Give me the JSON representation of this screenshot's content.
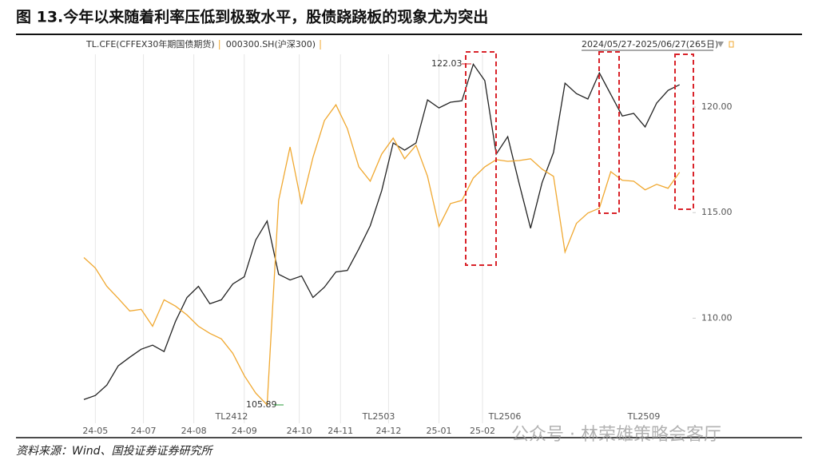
{
  "chart_data": {
    "type": "line",
    "title": "图 13.今年以来随着利率压低到极致水平，股债跷跷板的现象尤为突出",
    "range_label": "2024/05/27-2025/06/27(265日)",
    "source": "资料来源：Wind、国投证券证券研究所",
    "watermark": "公众号 · 林荣雄策略会客厅",
    "contracts": [
      "TL2412",
      "TL2503",
      "TL2506",
      "TL2509"
    ],
    "annotations": [
      "122.03",
      "105.89"
    ],
    "x": [
      0,
      5,
      10,
      15,
      20,
      25,
      30,
      35,
      40,
      45,
      50,
      55,
      60,
      65,
      70,
      75,
      80,
      85,
      90,
      95,
      100,
      105,
      110,
      115,
      120,
      125,
      130,
      135,
      140,
      145,
      150,
      155,
      160,
      165,
      170,
      175,
      180,
      185,
      190,
      195,
      200,
      205,
      210,
      215,
      220,
      225,
      230,
      235,
      240,
      245,
      250,
      255,
      260
    ],
    "xlim": [
      0,
      265
    ],
    "xticks": [
      {
        "value": 5,
        "label": "24-05"
      },
      {
        "value": 26,
        "label": "24-07"
      },
      {
        "value": 48,
        "label": "24-08"
      },
      {
        "value": 70,
        "label": "24-09"
      },
      {
        "value": 94,
        "label": "24-10"
      },
      {
        "value": 112,
        "label": "24-11"
      },
      {
        "value": 133,
        "label": "24-12"
      },
      {
        "value": 155,
        "label": "25-01"
      },
      {
        "value": 174,
        "label": "25-02"
      }
    ],
    "ylim": [
      105.4,
      122.5
    ],
    "yticks": [
      {
        "value": 110,
        "label": "110.00"
      },
      {
        "value": 115,
        "label": "115.00"
      },
      {
        "value": 120,
        "label": "120.00"
      }
    ],
    "grid": true,
    "series": [
      {
        "name": "TL.CFE(CFFEX30年期国债期货)",
        "color": "#222222",
        "values": [
          106.15,
          106.34,
          106.83,
          107.74,
          108.15,
          108.53,
          108.72,
          108.42,
          109.85,
          110.98,
          111.51,
          110.68,
          110.87,
          111.62,
          111.96,
          113.7,
          114.6,
          112.08,
          111.81,
          112.0,
          110.98,
          111.47,
          112.19,
          112.26,
          113.28,
          114.38,
          116.04,
          118.3,
          117.96,
          118.3,
          120.34,
          119.96,
          120.23,
          120.3,
          122.03,
          121.25,
          117.77,
          118.6,
          116.38,
          114.26,
          116.42,
          117.85,
          121.13,
          120.64,
          120.38,
          121.62,
          120.6,
          119.58,
          119.7,
          119.06,
          120.19,
          120.79,
          121.06
        ]
      },
      {
        "name": "000300.SH(沪深300)",
        "color": "#f0a830",
        "values": [
          112.87,
          112.38,
          111.51,
          110.94,
          110.34,
          110.42,
          109.62,
          110.87,
          110.57,
          110.15,
          109.62,
          109.28,
          109.02,
          108.34,
          107.28,
          106.45,
          105.89,
          115.58,
          118.11,
          115.4,
          117.62,
          119.36,
          120.11,
          118.98,
          117.17,
          116.49,
          117.77,
          118.53,
          117.55,
          118.19,
          116.72,
          114.34,
          115.43,
          115.58,
          116.64,
          117.17,
          117.51,
          117.43,
          117.47,
          117.55,
          117.06,
          116.72,
          113.13,
          114.49,
          114.98,
          115.21,
          116.94,
          116.53,
          116.49,
          116.08,
          116.34,
          116.15,
          116.91
        ]
      }
    ]
  }
}
